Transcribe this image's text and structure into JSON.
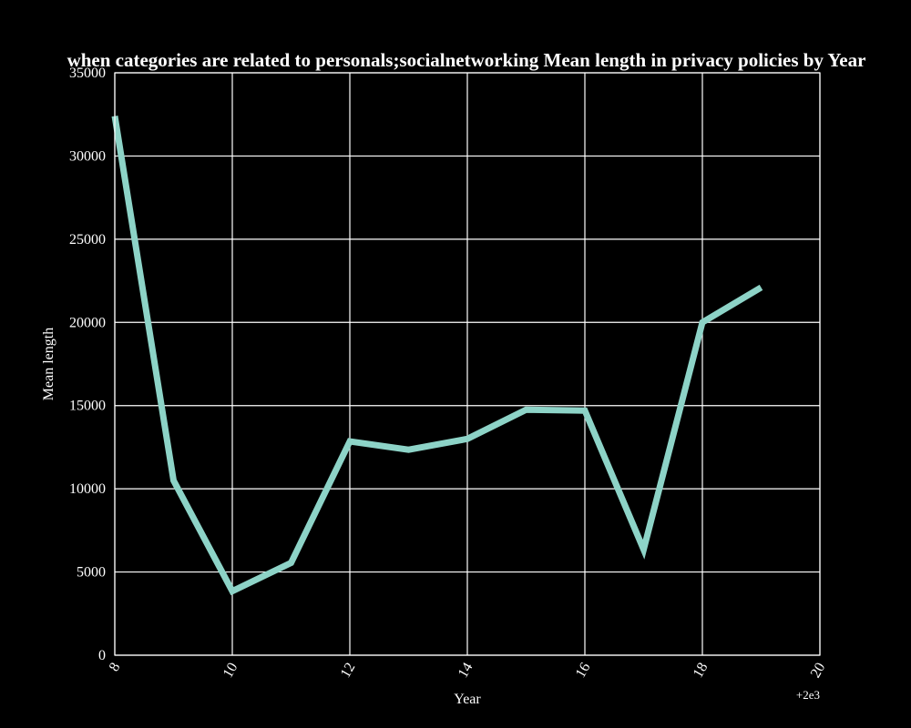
{
  "chart_data": {
    "type": "line",
    "title": "when categories are related to personals;socialnetworking Mean length in privacy policies by Year",
    "xlabel": "Year",
    "ylabel": "Mean length",
    "x_offset_label": "+2e3",
    "x": [
      8,
      9,
      10,
      11,
      12,
      13,
      14,
      15,
      16,
      17,
      18,
      19
    ],
    "series": [
      {
        "values": [
          32400,
          10500,
          3850,
          5550,
          12850,
          12350,
          13000,
          14750,
          14700,
          6350,
          20000,
          22100
        ],
        "color": "#8dd3c7"
      }
    ],
    "xlim": [
      8,
      20
    ],
    "ylim": [
      0,
      35000
    ],
    "xticks": [
      8,
      10,
      12,
      14,
      16,
      18,
      20
    ],
    "yticks": [
      0,
      5000,
      10000,
      15000,
      20000,
      25000,
      30000,
      35000
    ],
    "xtick_labels": [
      "8",
      "10",
      "12",
      "14",
      "16",
      "18",
      "20"
    ],
    "ytick_labels": [
      "0",
      "5000",
      "10000",
      "15000",
      "20000",
      "25000",
      "30000",
      "35000"
    ],
    "grid": true,
    "background": "#000000",
    "foreground": "#ffffff",
    "grid_color": "#ffffff"
  }
}
